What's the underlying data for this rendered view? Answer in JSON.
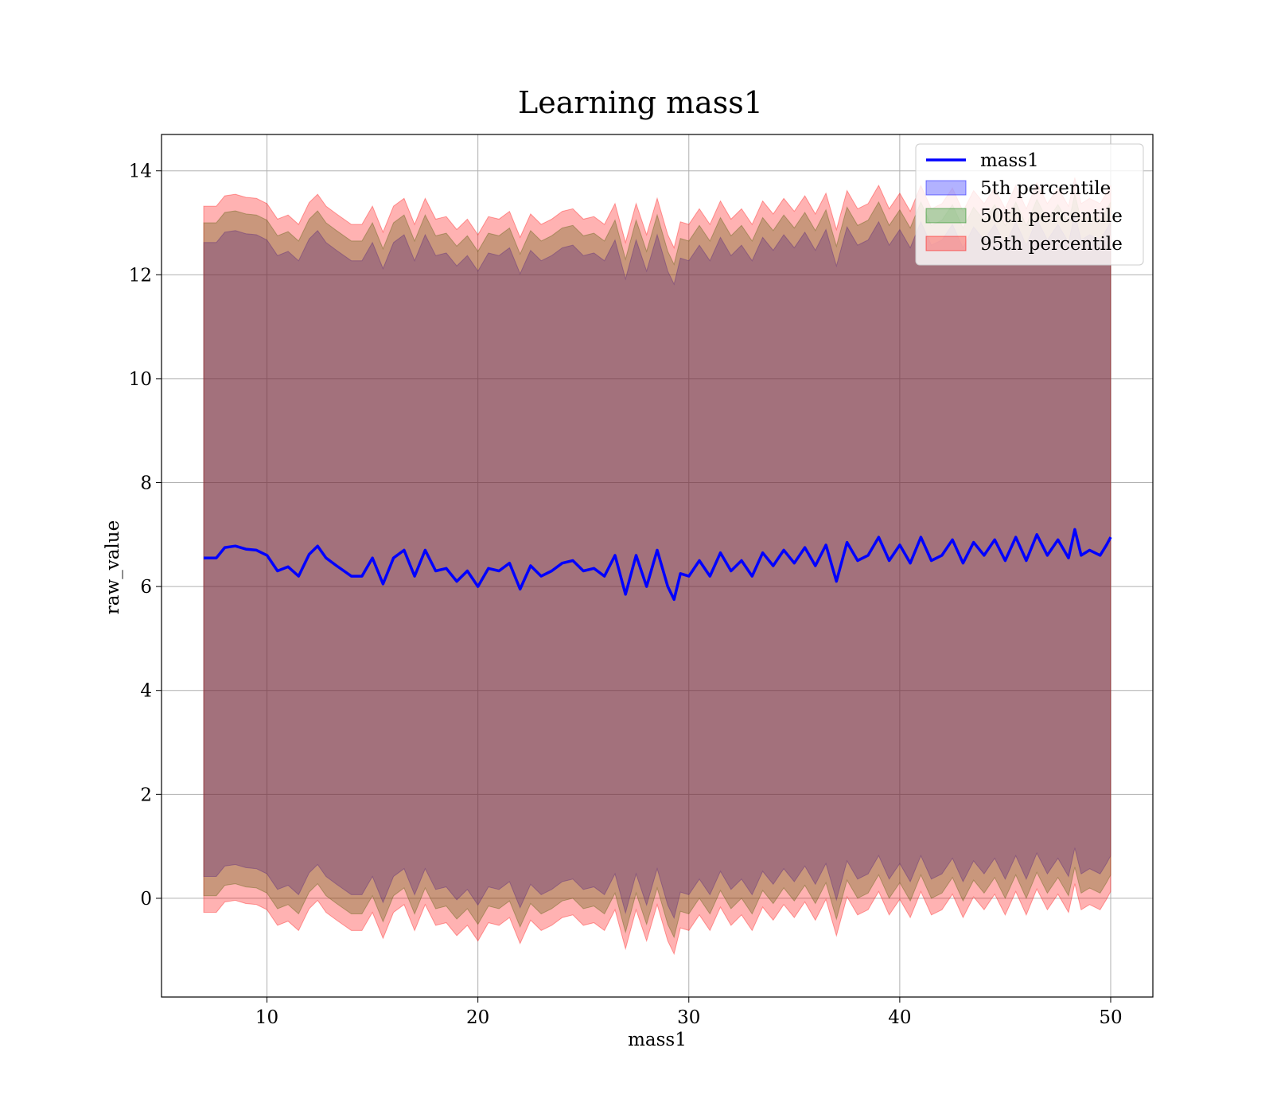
{
  "chart_data": {
    "type": "line",
    "title": "Learning mass1",
    "xlabel": "mass1",
    "ylabel": "raw_value",
    "xlim": [
      5,
      52
    ],
    "ylim": [
      -1.9,
      14.7
    ],
    "xticks": [
      10,
      20,
      30,
      40,
      50
    ],
    "yticks": [
      0,
      2,
      4,
      6,
      8,
      10,
      12,
      14
    ],
    "grid": true,
    "legend_position": "top-right",
    "colors": {
      "line": "#0000ff",
      "p5": "#0000ff",
      "p50": "#008000",
      "p95": "#ff0000"
    },
    "series": [
      {
        "name": "mass1",
        "kind": "line",
        "x": [
          7.0,
          7.6,
          8.0,
          8.5,
          9.0,
          9.5,
          10.0,
          10.5,
          11.0,
          11.5,
          12.0,
          12.4,
          12.8,
          13.3,
          14.0,
          14.5,
          15.0,
          15.5,
          16.0,
          16.5,
          17.0,
          17.5,
          18.0,
          18.5,
          19.0,
          19.5,
          20.0,
          20.5,
          21.0,
          21.5,
          22.0,
          22.5,
          23.0,
          23.5,
          24.0,
          24.5,
          25.0,
          25.5,
          26.0,
          26.5,
          27.0,
          27.5,
          28.0,
          28.5,
          29.0,
          29.3,
          29.6,
          30.0,
          30.5,
          31.0,
          31.5,
          32.0,
          32.5,
          33.0,
          33.5,
          34.0,
          34.5,
          35.0,
          35.5,
          36.0,
          36.5,
          37.0,
          37.5,
          38.0,
          38.5,
          39.0,
          39.5,
          40.0,
          40.5,
          41.0,
          41.5,
          42.0,
          42.5,
          43.0,
          43.5,
          44.0,
          44.5,
          45.0,
          45.5,
          46.0,
          46.5,
          47.0,
          47.5,
          48.0,
          48.3,
          48.6,
          49.0,
          49.5,
          49.8,
          50.0
        ],
        "y": [
          6.55,
          6.55,
          6.75,
          6.78,
          6.72,
          6.7,
          6.6,
          6.3,
          6.38,
          6.2,
          6.62,
          6.78,
          6.55,
          6.4,
          6.2,
          6.2,
          6.55,
          6.05,
          6.55,
          6.7,
          6.2,
          6.7,
          6.3,
          6.35,
          6.1,
          6.3,
          6.0,
          6.35,
          6.3,
          6.45,
          5.95,
          6.4,
          6.2,
          6.3,
          6.45,
          6.5,
          6.3,
          6.35,
          6.2,
          6.6,
          5.85,
          6.6,
          6.0,
          6.7,
          6.0,
          5.75,
          6.25,
          6.2,
          6.5,
          6.2,
          6.65,
          6.3,
          6.5,
          6.2,
          6.65,
          6.4,
          6.7,
          6.45,
          6.75,
          6.4,
          6.8,
          6.1,
          6.85,
          6.5,
          6.6,
          6.95,
          6.5,
          6.8,
          6.45,
          6.95,
          6.5,
          6.6,
          6.9,
          6.45,
          6.85,
          6.6,
          6.9,
          6.5,
          6.95,
          6.5,
          7.0,
          6.6,
          6.9,
          6.55,
          7.1,
          6.6,
          6.7,
          6.6,
          6.8,
          6.95
        ]
      },
      {
        "name": "5th percentile",
        "kind": "band",
        "x": [
          7.0,
          7.6,
          8.0,
          8.5,
          9.0,
          9.5,
          10.0,
          10.5,
          11.0,
          11.5,
          12.0,
          12.4,
          12.8,
          13.3,
          14.0,
          14.5,
          15.0,
          15.5,
          16.0,
          16.5,
          17.0,
          17.5,
          18.0,
          18.5,
          19.0,
          19.5,
          20.0,
          20.5,
          21.0,
          21.5,
          22.0,
          22.5,
          23.0,
          23.5,
          24.0,
          24.5,
          25.0,
          25.5,
          26.0,
          26.5,
          27.0,
          27.5,
          28.0,
          28.5,
          29.0,
          29.3,
          29.6,
          30.0,
          30.5,
          31.0,
          31.5,
          32.0,
          32.5,
          33.0,
          33.5,
          34.0,
          34.5,
          35.0,
          35.5,
          36.0,
          36.5,
          37.0,
          37.5,
          38.0,
          38.5,
          39.0,
          39.5,
          40.0,
          40.5,
          41.0,
          41.5,
          42.0,
          42.5,
          43.0,
          43.5,
          44.0,
          44.5,
          45.0,
          45.5,
          46.0,
          46.5,
          47.0,
          47.5,
          48.0,
          48.3,
          48.6,
          49.0,
          49.5,
          49.8,
          50.0
        ],
        "lower": [
          0.42,
          0.42,
          0.62,
          0.65,
          0.59,
          0.57,
          0.47,
          0.17,
          0.25,
          0.07,
          0.49,
          0.65,
          0.42,
          0.27,
          0.07,
          0.07,
          0.42,
          -0.08,
          0.42,
          0.57,
          0.07,
          0.57,
          0.17,
          0.22,
          -0.03,
          0.17,
          -0.13,
          0.22,
          0.17,
          0.32,
          -0.18,
          0.27,
          0.07,
          0.17,
          0.32,
          0.37,
          0.17,
          0.22,
          0.07,
          0.47,
          -0.28,
          0.47,
          -0.13,
          0.57,
          -0.13,
          -0.38,
          0.12,
          0.07,
          0.37,
          0.07,
          0.52,
          0.17,
          0.37,
          0.07,
          0.52,
          0.27,
          0.57,
          0.32,
          0.62,
          0.27,
          0.67,
          -0.03,
          0.72,
          0.37,
          0.47,
          0.82,
          0.37,
          0.67,
          0.32,
          0.82,
          0.37,
          0.47,
          0.77,
          0.32,
          0.72,
          0.47,
          0.77,
          0.37,
          0.82,
          0.37,
          0.87,
          0.47,
          0.77,
          0.42,
          0.97,
          0.47,
          0.57,
          0.47,
          0.67,
          0.82
        ],
        "upper": [
          12.62,
          12.62,
          12.82,
          12.85,
          12.79,
          12.77,
          12.67,
          12.37,
          12.45,
          12.27,
          12.69,
          12.85,
          12.62,
          12.47,
          12.27,
          12.27,
          12.62,
          12.12,
          12.62,
          12.77,
          12.27,
          12.77,
          12.37,
          12.42,
          12.17,
          12.37,
          12.07,
          12.42,
          12.37,
          12.52,
          12.02,
          12.47,
          12.27,
          12.37,
          12.52,
          12.57,
          12.37,
          12.42,
          12.27,
          12.67,
          11.92,
          12.67,
          12.07,
          12.77,
          12.07,
          11.82,
          12.32,
          12.27,
          12.57,
          12.27,
          12.72,
          12.37,
          12.57,
          12.27,
          12.72,
          12.47,
          12.77,
          12.52,
          12.82,
          12.47,
          12.87,
          12.17,
          12.92,
          12.57,
          12.67,
          13.02,
          12.57,
          12.87,
          12.52,
          13.02,
          12.57,
          12.67,
          12.97,
          12.52,
          12.92,
          12.67,
          12.97,
          12.57,
          13.02,
          12.57,
          13.07,
          12.67,
          12.97,
          12.62,
          13.17,
          12.67,
          12.77,
          12.67,
          12.87,
          13.02
        ]
      },
      {
        "name": "50th percentile",
        "kind": "band",
        "x": [
          7.0,
          7.6,
          8.0,
          8.5,
          9.0,
          9.5,
          10.0,
          10.5,
          11.0,
          11.5,
          12.0,
          12.4,
          12.8,
          13.3,
          14.0,
          14.5,
          15.0,
          15.5,
          16.0,
          16.5,
          17.0,
          17.5,
          18.0,
          18.5,
          19.0,
          19.5,
          20.0,
          20.5,
          21.0,
          21.5,
          22.0,
          22.5,
          23.0,
          23.5,
          24.0,
          24.5,
          25.0,
          25.5,
          26.0,
          26.5,
          27.0,
          27.5,
          28.0,
          28.5,
          29.0,
          29.3,
          29.6,
          30.0,
          30.5,
          31.0,
          31.5,
          32.0,
          32.5,
          33.0,
          33.5,
          34.0,
          34.5,
          35.0,
          35.5,
          36.0,
          36.5,
          37.0,
          37.5,
          38.0,
          38.5,
          39.0,
          39.5,
          40.0,
          40.5,
          41.0,
          41.5,
          42.0,
          42.5,
          43.0,
          43.5,
          44.0,
          44.5,
          45.0,
          45.5,
          46.0,
          46.5,
          47.0,
          47.5,
          48.0,
          48.3,
          48.6,
          49.0,
          49.5,
          49.8,
          50.0
        ],
        "lower": [
          0.05,
          0.05,
          0.25,
          0.28,
          0.22,
          0.2,
          0.1,
          -0.2,
          -0.12,
          -0.3,
          0.12,
          0.28,
          0.05,
          -0.1,
          -0.3,
          -0.3,
          0.05,
          -0.45,
          0.05,
          0.2,
          -0.3,
          0.2,
          -0.2,
          -0.15,
          -0.4,
          -0.2,
          -0.5,
          -0.15,
          -0.2,
          -0.05,
          -0.55,
          -0.1,
          -0.3,
          -0.2,
          -0.05,
          0.0,
          -0.2,
          -0.15,
          -0.3,
          0.1,
          -0.65,
          0.1,
          -0.5,
          0.2,
          -0.5,
          -0.75,
          -0.25,
          -0.3,
          0.0,
          -0.3,
          0.15,
          -0.2,
          0.0,
          -0.3,
          0.15,
          -0.1,
          0.2,
          -0.05,
          0.25,
          -0.1,
          0.3,
          -0.4,
          0.35,
          0.0,
          0.1,
          0.45,
          0.0,
          0.3,
          -0.05,
          0.45,
          0.0,
          0.1,
          0.4,
          -0.05,
          0.35,
          0.1,
          0.4,
          0.0,
          0.45,
          0.0,
          0.5,
          0.1,
          0.4,
          0.05,
          0.6,
          0.1,
          0.2,
          0.1,
          0.3,
          0.45
        ],
        "upper": [
          13.0,
          13.0,
          13.2,
          13.23,
          13.17,
          13.15,
          13.05,
          12.75,
          12.83,
          12.65,
          13.07,
          13.23,
          13.0,
          12.85,
          12.65,
          12.65,
          13.0,
          12.5,
          13.0,
          13.15,
          12.65,
          13.15,
          12.75,
          12.8,
          12.55,
          12.75,
          12.45,
          12.8,
          12.75,
          12.9,
          12.4,
          12.85,
          12.65,
          12.75,
          12.9,
          12.95,
          12.75,
          12.8,
          12.65,
          13.05,
          12.3,
          13.05,
          12.45,
          13.15,
          12.45,
          12.2,
          12.7,
          12.65,
          12.95,
          12.65,
          13.1,
          12.75,
          12.95,
          12.65,
          13.1,
          12.85,
          13.15,
          12.9,
          13.2,
          12.85,
          13.25,
          12.55,
          13.3,
          12.95,
          13.05,
          13.4,
          12.95,
          13.25,
          12.9,
          13.4,
          12.95,
          13.05,
          13.35,
          12.9,
          13.3,
          13.05,
          13.35,
          12.95,
          13.4,
          12.95,
          13.45,
          13.05,
          13.35,
          13.0,
          13.55,
          13.05,
          13.15,
          13.05,
          13.25,
          13.4
        ]
      },
      {
        "name": "95th percentile",
        "kind": "band",
        "x": [
          7.0,
          7.6,
          8.0,
          8.5,
          9.0,
          9.5,
          10.0,
          10.5,
          11.0,
          11.5,
          12.0,
          12.4,
          12.8,
          13.3,
          14.0,
          14.5,
          15.0,
          15.5,
          16.0,
          16.5,
          17.0,
          17.5,
          18.0,
          18.5,
          19.0,
          19.5,
          20.0,
          20.5,
          21.0,
          21.5,
          22.0,
          22.5,
          23.0,
          23.5,
          24.0,
          24.5,
          25.0,
          25.5,
          26.0,
          26.5,
          27.0,
          27.5,
          28.0,
          28.5,
          29.0,
          29.3,
          29.6,
          30.0,
          30.5,
          31.0,
          31.5,
          32.0,
          32.5,
          33.0,
          33.5,
          34.0,
          34.5,
          35.0,
          35.5,
          36.0,
          36.5,
          37.0,
          37.5,
          38.0,
          38.5,
          39.0,
          39.5,
          40.0,
          40.5,
          41.0,
          41.5,
          42.0,
          42.5,
          43.0,
          43.5,
          44.0,
          44.5,
          45.0,
          45.5,
          46.0,
          46.5,
          47.0,
          47.5,
          48.0,
          48.3,
          48.6,
          49.0,
          49.5,
          49.8,
          50.0
        ],
        "lower": [
          -0.27,
          -0.27,
          -0.07,
          -0.04,
          -0.1,
          -0.12,
          -0.22,
          -0.52,
          -0.44,
          -0.62,
          -0.2,
          -0.04,
          -0.27,
          -0.42,
          -0.62,
          -0.62,
          -0.27,
          -0.77,
          -0.27,
          -0.12,
          -0.62,
          -0.12,
          -0.52,
          -0.47,
          -0.72,
          -0.52,
          -0.82,
          -0.47,
          -0.52,
          -0.37,
          -0.87,
          -0.42,
          -0.62,
          -0.52,
          -0.37,
          -0.32,
          -0.52,
          -0.47,
          -0.62,
          -0.22,
          -0.97,
          -0.22,
          -0.82,
          -0.12,
          -0.82,
          -1.07,
          -0.57,
          -0.62,
          -0.32,
          -0.62,
          -0.17,
          -0.52,
          -0.32,
          -0.62,
          -0.17,
          -0.42,
          -0.12,
          -0.37,
          -0.07,
          -0.42,
          -0.02,
          -0.72,
          0.03,
          -0.32,
          -0.22,
          0.13,
          -0.32,
          -0.02,
          -0.37,
          0.13,
          -0.32,
          -0.22,
          0.08,
          -0.37,
          0.03,
          -0.22,
          0.08,
          -0.32,
          0.13,
          -0.32,
          0.18,
          -0.22,
          0.08,
          -0.27,
          0.28,
          -0.22,
          -0.12,
          -0.22,
          -0.02,
          0.13
        ],
        "upper": [
          13.32,
          13.32,
          13.52,
          13.55,
          13.49,
          13.47,
          13.37,
          13.07,
          13.15,
          12.97,
          13.39,
          13.55,
          13.32,
          13.17,
          12.97,
          12.97,
          13.32,
          12.82,
          13.32,
          13.47,
          12.97,
          13.47,
          13.07,
          13.12,
          12.87,
          13.07,
          12.77,
          13.12,
          13.07,
          13.22,
          12.72,
          13.17,
          12.97,
          13.07,
          13.22,
          13.27,
          13.07,
          13.12,
          12.97,
          13.37,
          12.62,
          13.37,
          12.77,
          13.47,
          12.77,
          12.52,
          13.02,
          12.97,
          13.27,
          12.97,
          13.42,
          13.07,
          13.27,
          12.97,
          13.42,
          13.17,
          13.47,
          13.22,
          13.52,
          13.17,
          13.57,
          12.87,
          13.62,
          13.27,
          13.37,
          13.72,
          13.27,
          13.57,
          13.22,
          13.72,
          13.27,
          13.37,
          13.67,
          13.22,
          13.62,
          13.37,
          13.67,
          13.27,
          13.72,
          13.27,
          13.77,
          13.37,
          13.67,
          13.32,
          13.87,
          13.37,
          13.47,
          13.37,
          13.57,
          13.72
        ]
      }
    ],
    "legend": [
      "mass1",
      "5th percentile",
      "50th percentile",
      "95th percentile"
    ]
  }
}
